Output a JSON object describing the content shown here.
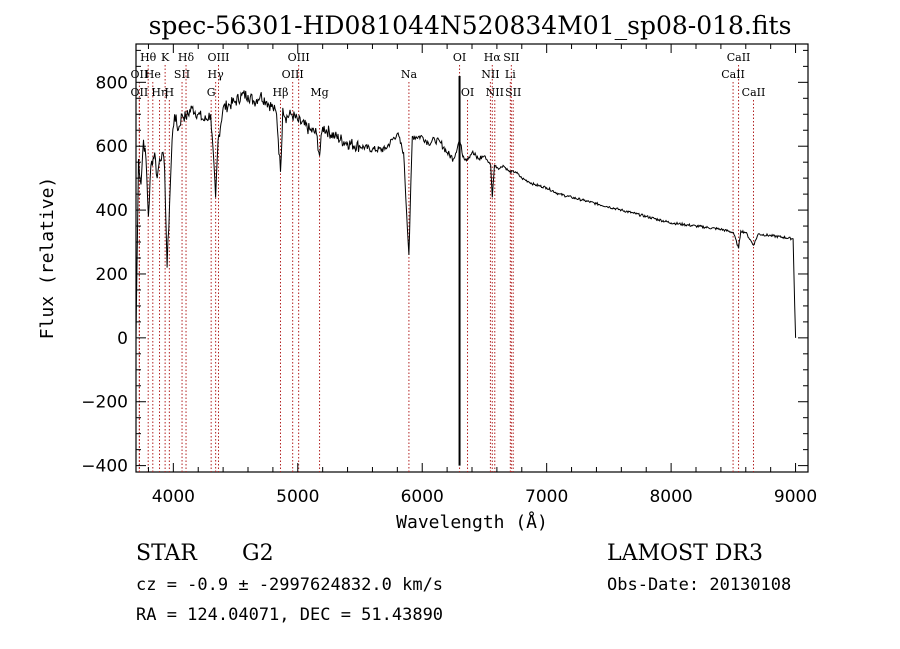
{
  "chart_data": {
    "type": "line",
    "title": "spec-56301-HD081044N520834M01_sp08-018.fits",
    "xlabel": "Wavelength (Å)",
    "ylabel": "Flux (relative)",
    "xlim": [
      3700,
      9100
    ],
    "ylim": [
      -420,
      920
    ],
    "xticks": [
      4000,
      5000,
      6000,
      7000,
      8000,
      9000
    ],
    "yticks": [
      -400,
      -200,
      0,
      200,
      400,
      600,
      800
    ],
    "grid": false,
    "series": [
      {
        "name": "spectrum",
        "x": [
          3700,
          3720,
          3740,
          3760,
          3780,
          3800,
          3820,
          3850,
          3870,
          3890,
          3910,
          3930,
          3950,
          3970,
          3990,
          4010,
          4040,
          4070,
          4100,
          4150,
          4200,
          4250,
          4300,
          4340,
          4360,
          4400,
          4450,
          4500,
          4550,
          4600,
          4650,
          4700,
          4750,
          4800,
          4830,
          4861,
          4880,
          4900,
          4950,
          5000,
          5100,
          5150,
          5175,
          5200,
          5300,
          5400,
          5500,
          5600,
          5700,
          5800,
          5850,
          5893,
          5920,
          6000,
          6050,
          6100,
          6150,
          6200,
          6250,
          6300,
          6320,
          6350,
          6400,
          6450,
          6500,
          6550,
          6563,
          6580,
          6620,
          6650,
          6700,
          6750,
          6800,
          6850,
          6900,
          7000,
          7100,
          7200,
          7300,
          7400,
          7500,
          7600,
          7700,
          7800,
          7900,
          8000,
          8100,
          8200,
          8300,
          8400,
          8500,
          8542,
          8560,
          8600,
          8662,
          8700,
          8800,
          8900,
          8980,
          9000
        ],
        "y": [
          0,
          560,
          480,
          620,
          560,
          380,
          540,
          580,
          500,
          560,
          580,
          530,
          220,
          420,
          620,
          700,
          650,
          700,
          690,
          720,
          700,
          680,
          700,
          440,
          620,
          720,
          730,
          740,
          760,
          760,
          740,
          760,
          740,
          720,
          700,
          520,
          720,
          690,
          700,
          680,
          650,
          640,
          570,
          660,
          630,
          610,
          600,
          590,
          590,
          640,
          580,
          260,
          630,
          630,
          610,
          620,
          610,
          580,
          560,
          620,
          580,
          560,
          580,
          560,
          570,
          540,
          440,
          540,
          530,
          540,
          520,
          520,
          500,
          490,
          480,
          470,
          450,
          440,
          430,
          420,
          410,
          400,
          390,
          380,
          370,
          360,
          355,
          350,
          345,
          340,
          330,
          280,
          335,
          330,
          290,
          325,
          320,
          315,
          310,
          0
        ]
      }
    ],
    "lines": [
      {
        "label": "Hθ",
        "x": 3798,
        "row": 1
      },
      {
        "label": "OII",
        "x": 3727,
        "row": 2
      },
      {
        "label": "OII",
        "x": 3727,
        "row": 3
      },
      {
        "label": "He",
        "x": 3835,
        "row": 2
      },
      {
        "label": "Hη",
        "x": 3889,
        "row": 3
      },
      {
        "label": "K",
        "x": 3934,
        "row": 1
      },
      {
        "label": "H",
        "x": 3968,
        "row": 3
      },
      {
        "label": "SII",
        "x": 4070,
        "row": 2
      },
      {
        "label": "Hδ",
        "x": 4102,
        "row": 1
      },
      {
        "label": "OIII",
        "x": 4363,
        "row": 1
      },
      {
        "label": "Hγ",
        "x": 4340,
        "row": 2
      },
      {
        "label": "G",
        "x": 4304,
        "row": 3
      },
      {
        "label": "Hβ",
        "x": 4861,
        "row": 3
      },
      {
        "label": "OIII",
        "x": 4959,
        "row": 2
      },
      {
        "label": "OIII",
        "x": 5007,
        "row": 1
      },
      {
        "label": "Mg",
        "x": 5175,
        "row": 3
      },
      {
        "label": "Na",
        "x": 5893,
        "row": 2
      },
      {
        "label": "OI",
        "x": 6300,
        "row": 1
      },
      {
        "label": "OI",
        "x": 6364,
        "row": 3
      },
      {
        "label": "Hα",
        "x": 6563,
        "row": 1
      },
      {
        "label": "NII",
        "x": 6548,
        "row": 2
      },
      {
        "label": "NII",
        "x": 6583,
        "row": 3
      },
      {
        "label": "SII",
        "x": 6716,
        "row": 1
      },
      {
        "label": "SII",
        "x": 6731,
        "row": 3
      },
      {
        "label": "Li",
        "x": 6708,
        "row": 2
      },
      {
        "label": "CaII",
        "x": 8542,
        "row": 1
      },
      {
        "label": "CaII",
        "x": 8498,
        "row": 2
      },
      {
        "label": "CaII",
        "x": 8662,
        "row": 3
      }
    ]
  },
  "footer": {
    "class": "STAR",
    "subclass": "G2",
    "survey": "LAMOST DR3",
    "cz_line": "cz = -0.9 ± -2997624832.0 km/s",
    "obs_date": "Obs-Date: 20130108",
    "radec": "RA = 124.04071, DEC =  51.43890"
  },
  "colors": {
    "line": "#000000",
    "marker": "#b22222"
  }
}
